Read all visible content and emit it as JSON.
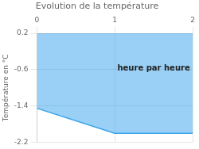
{
  "chart_data": {
    "type": "line",
    "title": "Evolution de la température",
    "ylabel": "Température en °C",
    "x": [
      0,
      1,
      2
    ],
    "values": [
      -1.45,
      -2.0,
      -2.0
    ],
    "fill": "top",
    "xlim": [
      0,
      2
    ],
    "ylim": [
      -2.2,
      0.2
    ],
    "xticks": [
      0,
      1,
      2
    ],
    "yticks": [
      0.2,
      -0.6,
      -1.4,
      -2.2
    ],
    "grid": true,
    "annotations": [
      {
        "text": "heure par heure",
        "x": 1.5,
        "y": -0.58
      }
    ]
  }
}
